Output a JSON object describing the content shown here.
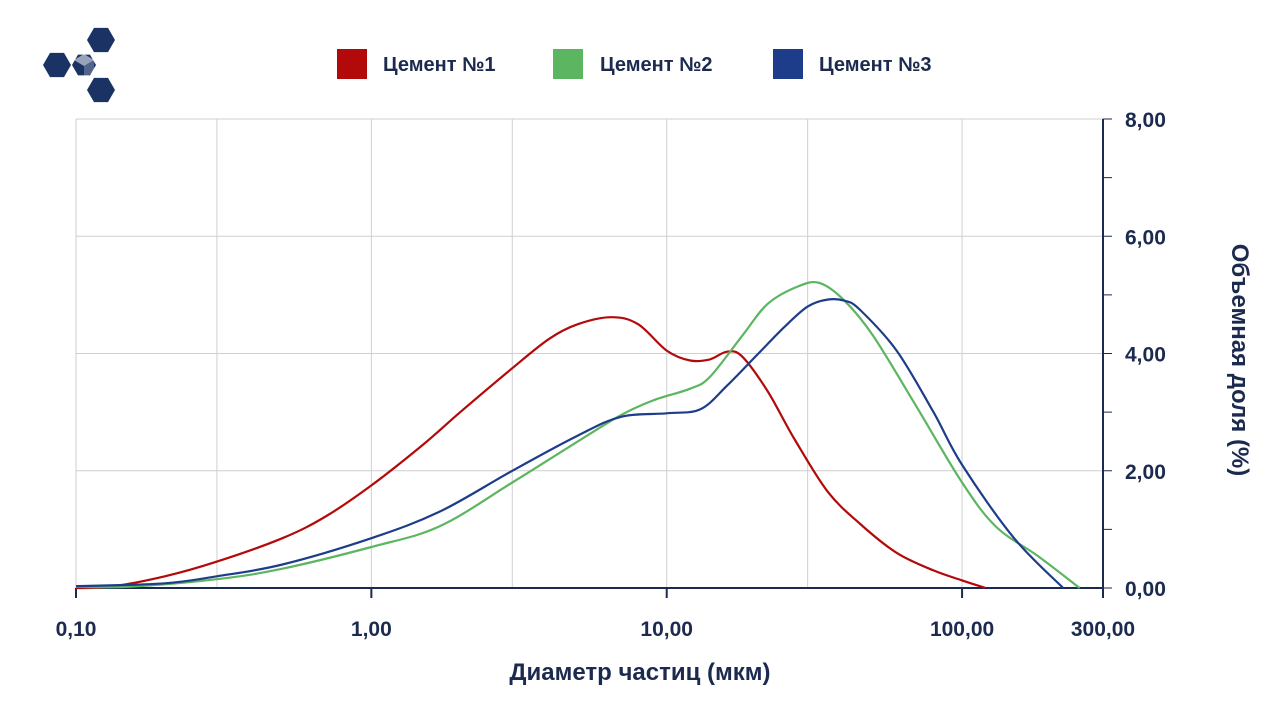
{
  "chart_data": {
    "type": "line",
    "xlabel": "Диаметр частиц (мкм)",
    "ylabel": "Объемная доля (%)",
    "x_scale": "log",
    "xlim": [
      0.1,
      300
    ],
    "ylim": [
      0,
      8
    ],
    "x_ticks": [
      {
        "value": 0.1,
        "label": "0,10"
      },
      {
        "value": 1,
        "label": "1,00"
      },
      {
        "value": 10,
        "label": "10,00"
      },
      {
        "value": 100,
        "label": "100,00"
      },
      {
        "value": 300,
        "label": "300,00"
      }
    ],
    "y_ticks": [
      {
        "value": 0,
        "label": "0,00"
      },
      {
        "value": 2,
        "label": "2,00"
      },
      {
        "value": 4,
        "label": "4,00"
      },
      {
        "value": 6,
        "label": "6,00"
      },
      {
        "value": 8,
        "label": "8,00"
      }
    ],
    "grid": true,
    "legend_position": "top-center",
    "series": [
      {
        "name": "Цемент №1",
        "color": "#b20a0a",
        "x": [
          0.1,
          0.13,
          0.2,
          0.3,
          0.5,
          0.7,
          1.0,
          1.5,
          2.0,
          3.0,
          4.0,
          5.0,
          6.5,
          8.0,
          10.0,
          12.0,
          14.0,
          16.0,
          18.0,
          22.0,
          27.0,
          35.0,
          45.0,
          60.0,
          80.0,
          100.0,
          120.0
        ],
        "values": [
          0.0,
          0.02,
          0.2,
          0.45,
          0.85,
          1.22,
          1.75,
          2.45,
          3.0,
          3.75,
          4.25,
          4.5,
          4.62,
          4.5,
          4.05,
          3.88,
          3.9,
          4.03,
          3.95,
          3.35,
          2.55,
          1.65,
          1.1,
          0.6,
          0.3,
          0.13,
          0.0
        ]
      },
      {
        "name": "Цемент №2",
        "color": "#5cb560",
        "x": [
          0.1,
          0.15,
          0.3,
          0.5,
          1.0,
          1.7,
          3.0,
          5.0,
          7.0,
          9.0,
          12.0,
          14.0,
          18.0,
          22.0,
          28.0,
          33.0,
          40.0,
          50.0,
          70.0,
          100.0,
          130.0,
          180.0,
          250.0
        ],
        "values": [
          0.02,
          0.02,
          0.15,
          0.33,
          0.7,
          1.05,
          1.8,
          2.5,
          2.95,
          3.2,
          3.4,
          3.6,
          4.3,
          4.85,
          5.15,
          5.2,
          4.9,
          4.3,
          3.1,
          1.8,
          1.05,
          0.55,
          0.0
        ]
      },
      {
        "name": "Цемент №3",
        "color": "#1d3d8a",
        "x": [
          0.1,
          0.2,
          0.3,
          0.5,
          1.0,
          1.7,
          3.0,
          5.0,
          7.0,
          10.0,
          13.0,
          16.0,
          20.0,
          25.0,
          30.0,
          35.0,
          40.0,
          45.0,
          60.0,
          80.0,
          100.0,
          150.0,
          220.0
        ],
        "values": [
          0.03,
          0.08,
          0.2,
          0.4,
          0.85,
          1.3,
          2.0,
          2.6,
          2.92,
          2.98,
          3.05,
          3.45,
          3.95,
          4.45,
          4.8,
          4.92,
          4.9,
          4.75,
          4.05,
          3.0,
          2.1,
          0.85,
          0.0
        ]
      }
    ]
  },
  "logo": {
    "icon": "hexagon-cluster-icon",
    "color": "#1b3264"
  }
}
